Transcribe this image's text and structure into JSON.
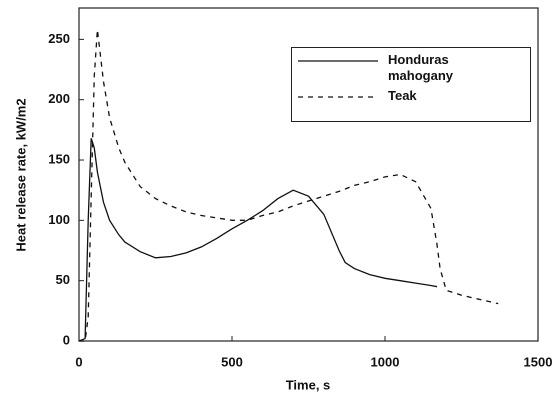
{
  "chart_data": {
    "type": "line",
    "xlabel": "Time, s",
    "ylabel": "Heat release rate, kW/m2",
    "x": [
      0,
      20,
      30,
      40,
      50,
      60,
      80,
      100,
      130,
      150,
      200,
      250,
      300,
      350,
      400,
      450,
      500,
      550,
      600,
      650,
      700,
      750,
      800,
      850,
      870,
      900,
      950,
      1000,
      1050,
      1100,
      1150,
      1170,
      1180,
      1200,
      1250,
      1300,
      1370
    ],
    "series": [
      {
        "name": "Honduras mahogany",
        "color": "#111111",
        "style": "solid",
        "values": [
          0,
          2,
          100,
          168,
          160,
          140,
          115,
          100,
          88,
          82,
          74,
          69,
          70,
          73,
          78,
          85,
          93,
          100,
          108,
          118,
          125,
          120,
          105,
          75,
          65,
          60,
          55,
          52,
          50,
          48,
          46,
          45,
          null,
          null,
          null,
          null,
          null
        ]
      },
      {
        "name": "Teak",
        "color": "#111111",
        "style": "dashed",
        "values": [
          0,
          0,
          20,
          120,
          220,
          258,
          215,
          185,
          160,
          148,
          128,
          118,
          112,
          107,
          104,
          102,
          100,
          100,
          104,
          107,
          112,
          116,
          120,
          124,
          126,
          129,
          132,
          136,
          138,
          132,
          110,
          80,
          60,
          42,
          38,
          35,
          31
        ]
      }
    ],
    "xlim": [
      0,
      1500
    ],
    "xticks": [
      0,
      500,
      1000,
      1500
    ],
    "ylim": [
      0,
      276
    ],
    "yticks": [
      0,
      50,
      100,
      150,
      200,
      250
    ],
    "legend": "upper right"
  }
}
